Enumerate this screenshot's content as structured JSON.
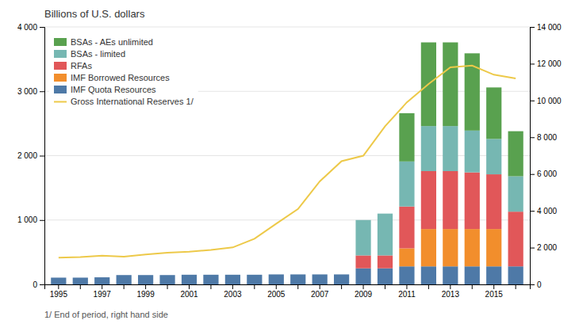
{
  "chart_data": {
    "type": "bar",
    "stacked": true,
    "title": "Billions of U.S. dollars",
    "categories": [
      "1995",
      null,
      "1997",
      null,
      "1999",
      null,
      "2001",
      null,
      "2003",
      null,
      "2005",
      null,
      "2007",
      null,
      "2009",
      null,
      "2011",
      null,
      "2013",
      null,
      "2015",
      null
    ],
    "series": [
      {
        "name": "IMF Quota Resources",
        "values": [
          105,
          105,
          110,
          145,
          145,
          145,
          150,
          150,
          150,
          150,
          155,
          155,
          155,
          155,
          250,
          250,
          280,
          280,
          280,
          280,
          280,
          280
        ]
      },
      {
        "name": "IMF Borrowed Resources",
        "values": [
          0,
          0,
          0,
          0,
          0,
          0,
          0,
          0,
          0,
          0,
          0,
          0,
          0,
          0,
          0,
          0,
          280,
          580,
          580,
          580,
          580,
          0
        ]
      },
      {
        "name": "RFAs",
        "values": [
          0,
          0,
          0,
          0,
          0,
          0,
          0,
          0,
          0,
          0,
          0,
          0,
          0,
          0,
          200,
          200,
          650,
          900,
          900,
          880,
          850,
          850
        ]
      },
      {
        "name": "BSAs - limited",
        "values": [
          0,
          0,
          0,
          0,
          0,
          0,
          0,
          0,
          0,
          0,
          0,
          0,
          0,
          0,
          550,
          650,
          700,
          700,
          700,
          650,
          550,
          550
        ]
      },
      {
        "name": "BSAs - AEs unlimited",
        "values": [
          0,
          0,
          0,
          0,
          0,
          0,
          0,
          0,
          0,
          0,
          0,
          0,
          0,
          0,
          0,
          0,
          750,
          1300,
          1300,
          1200,
          800,
          700
        ]
      },
      {
        "name": "Gross International Reserves 1/",
        "type": "line",
        "axis": "y2",
        "values": [
          1450,
          1490,
          1560,
          1510,
          1630,
          1720,
          1780,
          1870,
          2010,
          2480,
          3300,
          4100,
          5600,
          6700,
          7000,
          8600,
          9900,
          10900,
          11800,
          11900,
          11400,
          11200
        ]
      }
    ],
    "ylim": [
      0,
      4000
    ],
    "yticks": [
      0,
      {
        "value": 1000,
        "label": "1 000"
      },
      {
        "value": 2000,
        "label": "2 000"
      },
      {
        "value": 3000,
        "label": "3 000"
      },
      {
        "value": 4000,
        "label": "4 000"
      }
    ],
    "y2lim": [
      0,
      14000
    ],
    "y2ticks": [
      0,
      {
        "value": 2000,
        "label": "2 000"
      },
      {
        "value": 4000,
        "label": "4 000"
      },
      {
        "value": 6000,
        "label": "6 000"
      },
      {
        "value": 8000,
        "label": "8 000"
      },
      {
        "value": 10000,
        "label": "10 000"
      },
      {
        "value": 12000,
        "label": "12 000"
      },
      {
        "value": 14000,
        "label": "14 000"
      }
    ],
    "grid": true,
    "legend": "upper-left",
    "annotations": [
      "1/ End of period, right hand side"
    ]
  }
}
